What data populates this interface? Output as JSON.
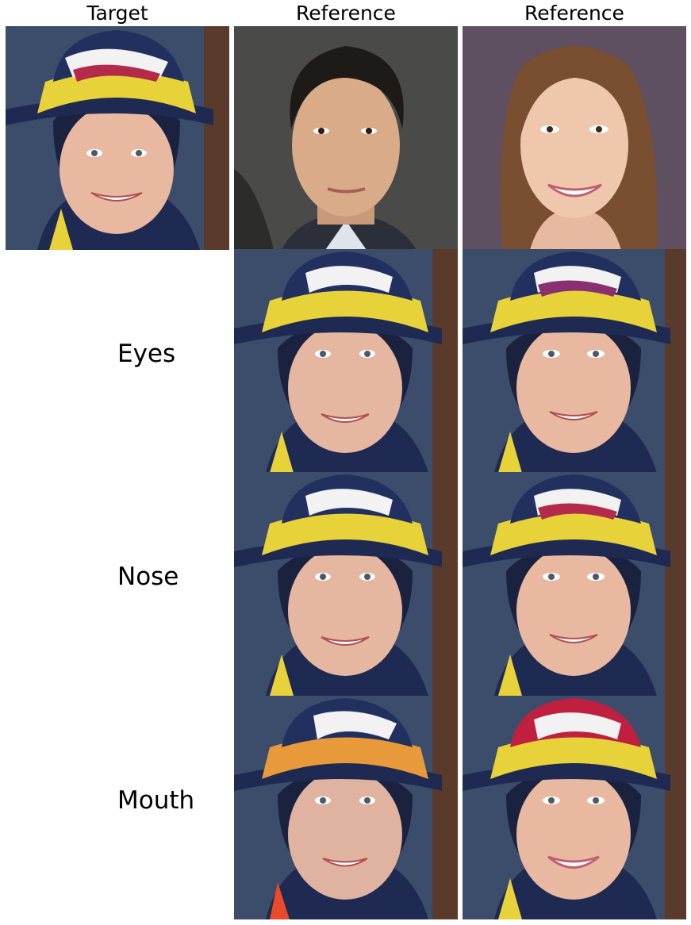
{
  "columns": {
    "target": "Target",
    "reference_1": "Reference",
    "reference_2": "Reference"
  },
  "rows": {
    "eyes": "Eyes",
    "nose": "Nose",
    "mouth": "Mouth"
  },
  "colors": {
    "text": "#000000",
    "background": "#ffffff",
    "helmet_navy": "#1e2a52",
    "helmet_yellow": "#e8d23a",
    "skin": "#e8b9a0"
  }
}
